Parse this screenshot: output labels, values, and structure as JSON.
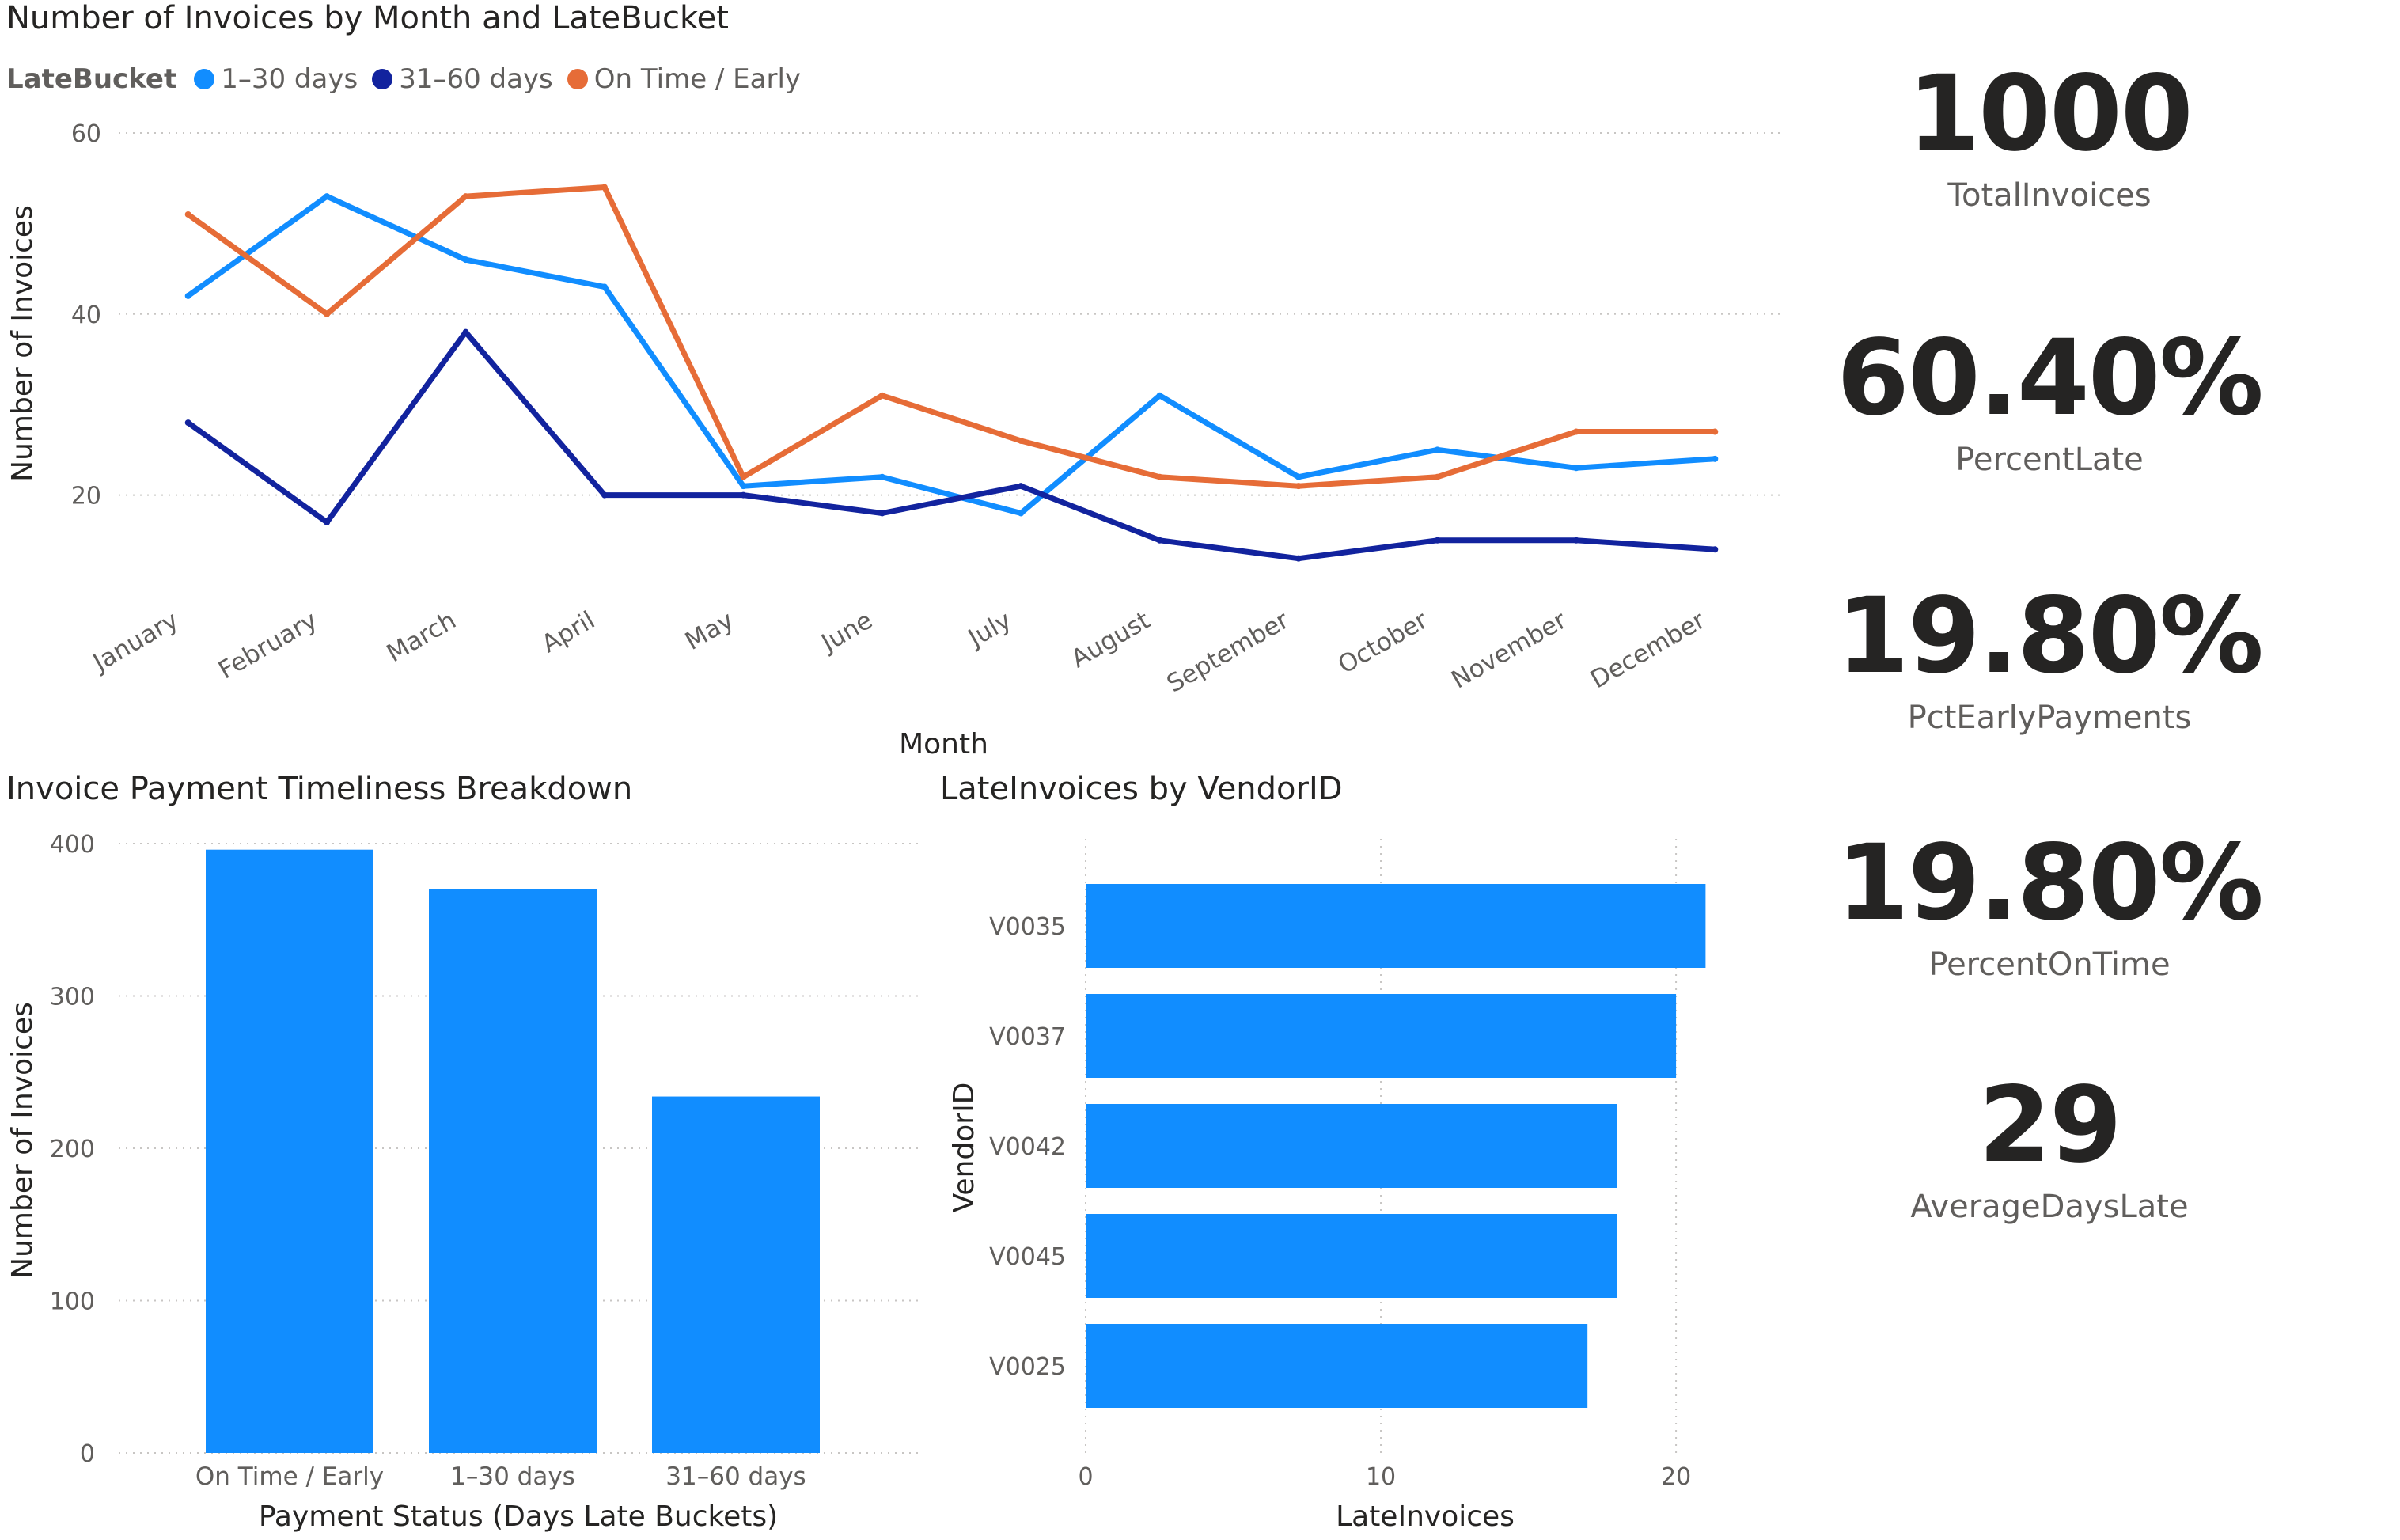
{
  "colors": {
    "series_1_30": "#118dff",
    "series_31_60": "#12239e",
    "series_ontime": "#e66c37",
    "bar": "#118dff",
    "grid": "#c8c6c4",
    "text": "#252423",
    "muted": "#605e5c"
  },
  "line_chart": {
    "title": "Number of Invoices by Month and LateBucket",
    "legend_title": "LateBucket"
  },
  "bar_chart": {
    "title": "Invoice Payment Timeliness Breakdown"
  },
  "hbar_chart": {
    "title": "LateInvoices by VendorID"
  },
  "cards": [
    {
      "value": "1000",
      "label": "TotalInvoices"
    },
    {
      "value": "60.40%",
      "label": "PercentLate"
    },
    {
      "value": "19.80%",
      "label": "PctEarlyPayments"
    },
    {
      "value": "19.80%",
      "label": "PercentOnTime"
    },
    {
      "value": "29",
      "label": "AverageDaysLate"
    }
  ],
  "chart_data": [
    {
      "type": "line",
      "title": "Number of Invoices by Month and LateBucket",
      "xlabel": "Month",
      "ylabel": "Number of Invoices",
      "categories": [
        "January",
        "February",
        "March",
        "April",
        "May",
        "June",
        "July",
        "August",
        "September",
        "October",
        "November",
        "December"
      ],
      "ylim": [
        10,
        60
      ],
      "yticks": [
        20,
        40,
        60
      ],
      "grid": true,
      "legend_position": "top-left",
      "series": [
        {
          "name": "1–30 days",
          "color": "#118dff",
          "values": [
            42,
            53,
            46,
            43,
            21,
            22,
            18,
            31,
            22,
            25,
            23,
            24
          ]
        },
        {
          "name": "31–60 days",
          "color": "#12239e",
          "values": [
            28,
            17,
            38,
            20,
            20,
            18,
            21,
            15,
            13,
            15,
            15,
            14
          ]
        },
        {
          "name": "On Time / Early",
          "color": "#e66c37",
          "values": [
            51,
            40,
            53,
            54,
            22,
            31,
            26,
            22,
            21,
            22,
            27,
            27
          ]
        }
      ]
    },
    {
      "type": "bar",
      "title": "Invoice Payment Timeliness Breakdown",
      "xlabel": "Payment Status (Days Late Buckets)",
      "ylabel": "Number of Invoices",
      "categories": [
        "On Time / Early",
        "1–30 days",
        "31–60 days"
      ],
      "values": [
        396,
        370,
        234
      ],
      "ylim": [
        0,
        400
      ],
      "yticks": [
        0,
        100,
        200,
        300,
        400
      ],
      "grid": true
    },
    {
      "type": "bar",
      "orientation": "horizontal",
      "title": "LateInvoices by VendorID",
      "xlabel": "LateInvoices",
      "ylabel": "VendorID",
      "categories": [
        "V0035",
        "V0037",
        "V0042",
        "V0045",
        "V0025"
      ],
      "values": [
        21,
        20,
        18,
        18,
        17
      ],
      "xlim": [
        0,
        23
      ],
      "xticks": [
        0,
        10,
        20
      ],
      "grid": true
    }
  ]
}
